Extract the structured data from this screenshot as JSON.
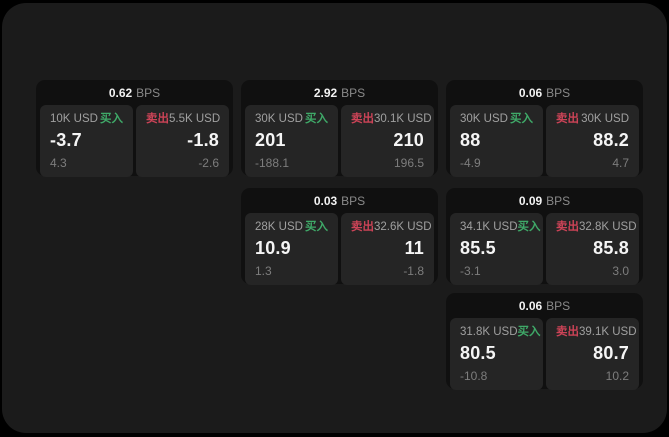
{
  "labels": {
    "bps": "BPS",
    "buy": "买入",
    "sell": "卖出"
  },
  "colors": {
    "panel_bg": "#1b1b1b",
    "card_bg": "#101010",
    "subcard_bg": "#252525",
    "buy_green": "#3fa968",
    "sell_red": "#cc4357"
  },
  "cards": [
    {
      "bps": "0.62",
      "buy": {
        "amount": "10K USD",
        "price": "-3.7",
        "delta": "4.3"
      },
      "sell": {
        "amount": "5.5K USD",
        "price": "-1.8",
        "delta": "-2.6"
      }
    },
    {
      "bps": "2.92",
      "buy": {
        "amount": "30K USD",
        "price": "201",
        "delta": "-188.1"
      },
      "sell": {
        "amount": "30.1K USD",
        "price": "210",
        "delta": "196.5"
      }
    },
    {
      "bps": "0.06",
      "buy": {
        "amount": "30K USD",
        "price": "88",
        "delta": "-4.9"
      },
      "sell": {
        "amount": "30K USD",
        "price": "88.2",
        "delta": "4.7"
      }
    },
    {
      "bps": "0.03",
      "buy": {
        "amount": "28K USD",
        "price": "10.9",
        "delta": "1.3"
      },
      "sell": {
        "amount": "32.6K USD",
        "price": "11",
        "delta": "-1.8"
      }
    },
    {
      "bps": "0.09",
      "buy": {
        "amount": "34.1K USD",
        "price": "85.5",
        "delta": "-3.1"
      },
      "sell": {
        "amount": "32.8K USD",
        "price": "85.8",
        "delta": "3.0"
      }
    },
    {
      "bps": "0.06",
      "buy": {
        "amount": "31.8K USD",
        "price": "80.5",
        "delta": "-10.8"
      },
      "sell": {
        "amount": "39.1K USD",
        "price": "80.7",
        "delta": "10.2"
      }
    }
  ]
}
